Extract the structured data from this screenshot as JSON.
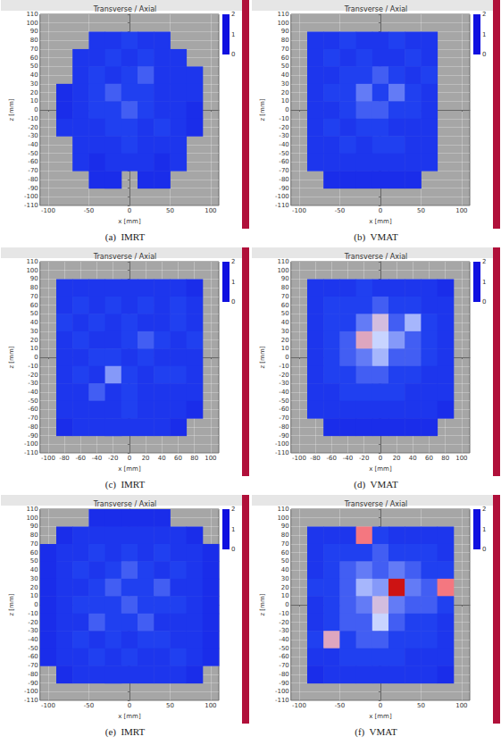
{
  "chart_data": [
    {
      "type": "heatmap",
      "title": "Transverse / Axial",
      "caption": "(a)  IMRT",
      "xlabel": "x [mm]",
      "ylabel": "z [mm]",
      "xlim": [
        -110,
        110
      ],
      "xticks": [
        -100,
        -50,
        0,
        50,
        100
      ],
      "ylim": [
        -110,
        110
      ],
      "yticks": [
        -110,
        -100,
        -90,
        -80,
        -70,
        -60,
        -50,
        -40,
        -30,
        -20,
        -10,
        0,
        10,
        20,
        30,
        40,
        50,
        60,
        70,
        80,
        90,
        100,
        110
      ],
      "grid": true,
      "cell_x": [
        -100,
        -80,
        -60,
        -40,
        -20,
        0,
        20,
        40,
        60,
        80,
        100
      ],
      "cell_z": [
        100,
        80,
        60,
        40,
        20,
        0,
        -20,
        -40,
        -60,
        -80,
        -100
      ],
      "cells": [
        [
          null,
          null,
          null,
          null,
          null,
          null,
          null,
          null,
          null,
          null,
          null
        ],
        [
          null,
          null,
          null,
          0.4,
          0.4,
          0.5,
          0.4,
          0.4,
          null,
          null,
          null
        ],
        [
          null,
          null,
          0.4,
          0.4,
          0.5,
          0.4,
          0.5,
          0.4,
          0.4,
          null,
          null
        ],
        [
          null,
          null,
          0.4,
          0.5,
          0.4,
          0.5,
          0.6,
          0.4,
          0.4,
          0.4,
          null
        ],
        [
          null,
          0.3,
          0.4,
          0.5,
          0.6,
          0.5,
          0.5,
          0.4,
          0.4,
          0.4,
          null
        ],
        [
          null,
          0.3,
          0.4,
          0.5,
          0.5,
          0.6,
          0.5,
          0.4,
          0.4,
          0.3,
          null
        ],
        [
          null,
          0.4,
          0.4,
          0.4,
          0.5,
          0.5,
          0.4,
          0.5,
          0.4,
          0.3,
          null
        ],
        [
          null,
          null,
          0.4,
          0.4,
          0.4,
          0.5,
          0.4,
          0.4,
          0.4,
          null,
          null
        ],
        [
          null,
          null,
          0.4,
          0.3,
          0.4,
          0.4,
          0.4,
          0.3,
          0.4,
          null,
          null
        ],
        [
          null,
          null,
          null,
          0.3,
          0.3,
          null,
          0.3,
          0.3,
          null,
          null,
          null
        ],
        [
          null,
          null,
          null,
          null,
          null,
          null,
          null,
          null,
          null,
          null,
          null
        ]
      ],
      "colorbar_lim": [
        0,
        2
      ],
      "colorbar_ticks": [
        0,
        1,
        2
      ]
    },
    {
      "type": "heatmap",
      "title": "Transverse / Axial",
      "caption": "(b)  VMAT",
      "xlabel": "x [mm]",
      "ylabel": "z [mm]",
      "xlim": [
        -110,
        110
      ],
      "xticks": [
        -100,
        -50,
        0,
        50,
        100
      ],
      "ylim": [
        -110,
        110
      ],
      "yticks": [
        -110,
        -100,
        -90,
        -80,
        -70,
        -60,
        -50,
        -40,
        -30,
        -20,
        -10,
        0,
        10,
        20,
        30,
        40,
        50,
        60,
        70,
        80,
        90,
        100,
        110
      ],
      "grid": true,
      "cell_x": [
        -100,
        -80,
        -60,
        -40,
        -20,
        0,
        20,
        40,
        60,
        80,
        100
      ],
      "cell_z": [
        100,
        80,
        60,
        40,
        20,
        0,
        -20,
        -40,
        -60,
        -80,
        -100
      ],
      "cells": [
        [
          null,
          null,
          null,
          null,
          null,
          null,
          null,
          null,
          null,
          null,
          null
        ],
        [
          null,
          0.4,
          0.4,
          0.5,
          0.4,
          0.4,
          0.5,
          0.4,
          0.4,
          null,
          null
        ],
        [
          null,
          0.4,
          0.5,
          0.4,
          0.5,
          0.4,
          0.4,
          0.5,
          0.4,
          null,
          null
        ],
        [
          null,
          0.4,
          0.4,
          0.5,
          0.5,
          0.6,
          0.5,
          0.4,
          0.5,
          null,
          null
        ],
        [
          null,
          0.4,
          0.5,
          0.5,
          0.7,
          0.5,
          0.7,
          0.5,
          0.4,
          null,
          null
        ],
        [
          null,
          0.4,
          0.4,
          0.5,
          0.6,
          0.6,
          0.5,
          0.5,
          0.4,
          null,
          null
        ],
        [
          null,
          0.4,
          0.5,
          0.4,
          0.5,
          0.5,
          0.4,
          0.4,
          0.4,
          null,
          null
        ],
        [
          null,
          0.4,
          0.4,
          0.5,
          0.4,
          0.5,
          0.5,
          0.4,
          0.4,
          null,
          null
        ],
        [
          null,
          0.4,
          0.4,
          0.4,
          0.4,
          0.4,
          0.4,
          0.4,
          0.4,
          null,
          null
        ],
        [
          null,
          null,
          0.3,
          0.3,
          0.3,
          0.3,
          0.3,
          0.3,
          null,
          null,
          null
        ],
        [
          null,
          null,
          null,
          null,
          null,
          null,
          null,
          null,
          null,
          null,
          null
        ]
      ],
      "colorbar_lim": [
        0,
        2
      ],
      "colorbar_ticks": [
        0,
        1,
        2
      ]
    },
    {
      "type": "heatmap",
      "title": "Transverse / Axial",
      "caption": "(c)  IMRT",
      "xlabel": "x [mm]",
      "ylabel": "z [mm]",
      "xlim": [
        -110,
        110
      ],
      "xticks": [
        -100,
        -80,
        -60,
        -40,
        -20,
        0,
        20,
        40,
        60,
        80,
        100
      ],
      "ylim": [
        -110,
        110
      ],
      "yticks": [
        -110,
        -100,
        -90,
        -80,
        -70,
        -60,
        -50,
        -40,
        -30,
        -20,
        -10,
        0,
        10,
        20,
        30,
        40,
        50,
        60,
        70,
        80,
        90,
        100,
        110
      ],
      "grid": true,
      "cell_x": [
        -100,
        -80,
        -60,
        -40,
        -20,
        0,
        20,
        40,
        60,
        80,
        100
      ],
      "cell_z": [
        100,
        80,
        60,
        40,
        20,
        0,
        -20,
        -40,
        -60,
        -80,
        -100
      ],
      "cells": [
        [
          null,
          null,
          null,
          null,
          null,
          null,
          null,
          null,
          null,
          null,
          null
        ],
        [
          null,
          0.4,
          0.4,
          0.4,
          0.4,
          0.4,
          0.4,
          0.4,
          0.4,
          0.3,
          null
        ],
        [
          null,
          0.4,
          0.5,
          0.4,
          0.5,
          0.4,
          0.5,
          0.4,
          0.5,
          0.4,
          null
        ],
        [
          null,
          0.5,
          0.4,
          0.5,
          0.4,
          0.5,
          0.4,
          0.4,
          0.5,
          0.4,
          null
        ],
        [
          null,
          0.4,
          0.5,
          0.4,
          0.4,
          0.5,
          0.6,
          0.5,
          0.4,
          0.5,
          null
        ],
        [
          null,
          0.4,
          0.4,
          0.5,
          0.5,
          0.4,
          0.5,
          0.4,
          0.4,
          0.4,
          null
        ],
        [
          null,
          0.4,
          0.5,
          0.4,
          0.8,
          0.5,
          0.4,
          0.5,
          0.5,
          0.4,
          null
        ],
        [
          null,
          0.4,
          0.4,
          0.6,
          0.4,
          0.5,
          0.4,
          0.4,
          0.4,
          0.4,
          null
        ],
        [
          null,
          0.4,
          0.4,
          0.4,
          0.4,
          0.5,
          0.4,
          0.4,
          0.4,
          0.3,
          null
        ],
        [
          null,
          0.3,
          0.4,
          0.4,
          0.4,
          0.4,
          0.4,
          0.4,
          0.3,
          null,
          null
        ],
        [
          null,
          null,
          null,
          null,
          null,
          null,
          null,
          null,
          null,
          null,
          null
        ]
      ],
      "colorbar_lim": [
        0,
        2
      ],
      "colorbar_ticks": [
        0,
        1,
        2
      ]
    },
    {
      "type": "heatmap",
      "title": "Transverse / Axial",
      "caption": "(d)  VMAT",
      "xlabel": "x [mm]",
      "ylabel": "z [mm]",
      "xlim": [
        -110,
        110
      ],
      "xticks": [
        -100,
        -80,
        -60,
        -40,
        -20,
        0,
        20,
        40,
        60,
        80,
        100
      ],
      "ylim": [
        -110,
        110
      ],
      "yticks": [
        -110,
        -100,
        -90,
        -80,
        -70,
        -60,
        -50,
        -40,
        -30,
        -20,
        -10,
        0,
        10,
        20,
        30,
        40,
        50,
        60,
        70,
        80,
        90,
        100,
        110
      ],
      "grid": true,
      "cell_x": [
        -100,
        -80,
        -60,
        -40,
        -20,
        0,
        20,
        40,
        60,
        80,
        100
      ],
      "cell_z": [
        100,
        80,
        60,
        40,
        20,
        0,
        -20,
        -40,
        -60,
        -80,
        -100
      ],
      "cells": [
        [
          null,
          null,
          null,
          null,
          null,
          null,
          null,
          null,
          null,
          null,
          null
        ],
        [
          null,
          0.4,
          0.4,
          0.4,
          0.5,
          0.4,
          0.4,
          0.4,
          0.4,
          0.3,
          null
        ],
        [
          null,
          0.4,
          0.5,
          0.5,
          0.5,
          0.6,
          0.5,
          0.5,
          0.4,
          0.4,
          null
        ],
        [
          null,
          0.4,
          0.5,
          0.5,
          0.7,
          1.1,
          0.6,
          0.9,
          0.5,
          0.4,
          null
        ],
        [
          null,
          0.4,
          0.5,
          0.6,
          1.2,
          1.0,
          0.8,
          0.6,
          0.5,
          0.4,
          null
        ],
        [
          null,
          0.4,
          0.5,
          0.6,
          0.7,
          0.9,
          0.6,
          0.6,
          0.5,
          0.4,
          null
        ],
        [
          null,
          0.4,
          0.5,
          0.5,
          0.6,
          0.6,
          0.5,
          0.5,
          0.4,
          0.4,
          null
        ],
        [
          null,
          0.4,
          0.4,
          0.5,
          0.5,
          0.5,
          0.5,
          0.4,
          0.4,
          0.4,
          null
        ],
        [
          null,
          0.4,
          0.4,
          0.4,
          0.4,
          0.4,
          0.4,
          0.4,
          0.4,
          0.3,
          null
        ],
        [
          null,
          null,
          0.3,
          0.3,
          0.3,
          0.3,
          0.3,
          0.3,
          0.3,
          null,
          null
        ],
        [
          null,
          null,
          null,
          null,
          null,
          null,
          null,
          null,
          null,
          null,
          null
        ]
      ],
      "colorbar_lim": [
        0,
        2
      ],
      "colorbar_ticks": [
        0,
        1,
        2
      ]
    },
    {
      "type": "heatmap",
      "title": "Transverse / Axial",
      "caption": "(e)  IMRT",
      "xlabel": "x [mm]",
      "ylabel": "z [mm]",
      "xlim": [
        -110,
        110
      ],
      "xticks": [
        -100,
        -50,
        0,
        50,
        100
      ],
      "ylim": [
        -110,
        110
      ],
      "yticks": [
        -110,
        -100,
        -90,
        -80,
        -70,
        -60,
        -50,
        -40,
        -30,
        -20,
        -10,
        0,
        10,
        20,
        30,
        40,
        50,
        60,
        70,
        80,
        90,
        100,
        110
      ],
      "grid": true,
      "cell_x": [
        -100,
        -80,
        -60,
        -40,
        -20,
        0,
        20,
        40,
        60,
        80,
        100
      ],
      "cell_z": [
        100,
        80,
        60,
        40,
        20,
        0,
        -20,
        -40,
        -60,
        -80,
        -100
      ],
      "cells": [
        [
          null,
          null,
          null,
          0.3,
          0.3,
          0.3,
          0.3,
          0.3,
          null,
          null,
          null
        ],
        [
          null,
          0.3,
          0.4,
          0.4,
          0.4,
          0.4,
          0.4,
          0.4,
          0.4,
          0.3,
          null
        ],
        [
          0.3,
          0.4,
          0.4,
          0.5,
          0.4,
          0.5,
          0.4,
          0.5,
          0.4,
          0.4,
          0.3
        ],
        [
          0.3,
          0.4,
          0.5,
          0.4,
          0.5,
          0.6,
          0.5,
          0.4,
          0.5,
          0.4,
          0.3
        ],
        [
          0.3,
          0.4,
          0.4,
          0.5,
          0.6,
          0.5,
          0.5,
          0.6,
          0.4,
          0.4,
          0.3
        ],
        [
          0.3,
          0.4,
          0.5,
          0.5,
          0.5,
          0.6,
          0.5,
          0.5,
          0.5,
          0.4,
          0.3
        ],
        [
          0.3,
          0.4,
          0.4,
          0.6,
          0.5,
          0.5,
          0.6,
          0.4,
          0.4,
          0.4,
          0.3
        ],
        [
          0.3,
          0.4,
          0.5,
          0.4,
          0.5,
          0.4,
          0.5,
          0.5,
          0.4,
          0.4,
          0.3
        ],
        [
          0.3,
          0.4,
          0.4,
          0.5,
          0.4,
          0.5,
          0.4,
          0.4,
          0.5,
          0.4,
          0.3
        ],
        [
          null,
          0.3,
          0.4,
          0.4,
          0.4,
          0.4,
          0.4,
          0.4,
          0.4,
          0.3,
          null
        ],
        [
          null,
          null,
          null,
          null,
          null,
          null,
          null,
          null,
          null,
          null,
          null
        ]
      ],
      "colorbar_lim": [
        0,
        2
      ],
      "colorbar_ticks": [
        0,
        1,
        2
      ]
    },
    {
      "type": "heatmap",
      "title": "Transverse / Axial",
      "caption": "(f)  VMAT",
      "xlabel": "x [mm]",
      "ylabel": "z [mm]",
      "xlim": [
        -110,
        110
      ],
      "xticks": [
        -100,
        -50,
        0,
        50,
        100
      ],
      "ylim": [
        -110,
        110
      ],
      "yticks": [
        -110,
        -100,
        -90,
        -80,
        -70,
        -60,
        -50,
        -40,
        -30,
        -20,
        -10,
        0,
        10,
        20,
        30,
        40,
        50,
        60,
        70,
        80,
        90,
        100,
        110
      ],
      "grid": true,
      "cell_x": [
        -100,
        -80,
        -60,
        -40,
        -20,
        0,
        20,
        40,
        60,
        80,
        100
      ],
      "cell_z": [
        100,
        80,
        60,
        40,
        20,
        0,
        -20,
        -40,
        -60,
        -80,
        -100
      ],
      "cells": [
        [
          null,
          null,
          null,
          null,
          null,
          null,
          null,
          null,
          null,
          null,
          null
        ],
        [
          null,
          0.4,
          0.4,
          0.4,
          1.4,
          0.5,
          0.4,
          0.4,
          0.4,
          0.4,
          null
        ],
        [
          null,
          0.4,
          0.5,
          0.5,
          0.5,
          0.6,
          0.5,
          0.5,
          0.5,
          0.4,
          null
        ],
        [
          null,
          0.4,
          0.5,
          0.6,
          0.7,
          0.6,
          0.7,
          0.6,
          0.5,
          0.5,
          null
        ],
        [
          null,
          0.5,
          0.5,
          0.6,
          0.9,
          0.8,
          1.9,
          0.7,
          0.6,
          1.4,
          null
        ],
        [
          null,
          0.4,
          0.5,
          0.6,
          0.7,
          1.1,
          0.7,
          0.6,
          0.6,
          0.5,
          null
        ],
        [
          null,
          0.4,
          0.5,
          0.6,
          0.6,
          1.0,
          0.6,
          0.5,
          0.5,
          0.4,
          null
        ],
        [
          null,
          0.5,
          1.2,
          0.5,
          0.6,
          0.6,
          0.5,
          0.5,
          0.5,
          0.4,
          null
        ],
        [
          null,
          0.4,
          0.4,
          0.5,
          0.5,
          0.5,
          0.5,
          0.4,
          0.4,
          0.4,
          null
        ],
        [
          null,
          0.3,
          0.4,
          0.4,
          0.4,
          0.4,
          0.4,
          0.4,
          0.4,
          0.3,
          null
        ],
        [
          null,
          null,
          null,
          null,
          null,
          null,
          null,
          null,
          null,
          null,
          null
        ]
      ],
      "colorbar_lim": [
        0,
        2
      ],
      "colorbar_ticks": [
        0,
        1,
        2
      ]
    }
  ]
}
